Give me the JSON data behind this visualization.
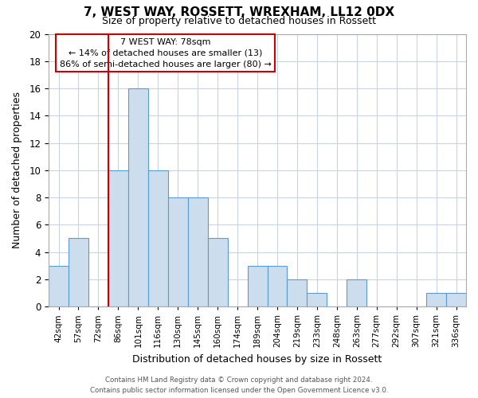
{
  "title": "7, WEST WAY, ROSSETT, WREXHAM, LL12 0DX",
  "subtitle": "Size of property relative to detached houses in Rossett",
  "xlabel": "Distribution of detached houses by size in Rossett",
  "ylabel": "Number of detached properties",
  "bin_labels": [
    "42sqm",
    "57sqm",
    "72sqm",
    "86sqm",
    "101sqm",
    "116sqm",
    "130sqm",
    "145sqm",
    "160sqm",
    "174sqm",
    "189sqm",
    "204sqm",
    "219sqm",
    "233sqm",
    "248sqm",
    "263sqm",
    "277sqm",
    "292sqm",
    "307sqm",
    "321sqm",
    "336sqm"
  ],
  "bar_heights": [
    3,
    5,
    0,
    10,
    16,
    10,
    8,
    8,
    5,
    0,
    3,
    3,
    2,
    1,
    0,
    2,
    0,
    0,
    0,
    1,
    1
  ],
  "bar_color": "#ccdded",
  "bar_edge_color": "#5b9bd5",
  "grid_color": "#c8d4e0",
  "property_line_color": "#cc0000",
  "annotation_text_line1": "7 WEST WAY: 78sqm",
  "annotation_text_line2": "← 14% of detached houses are smaller (13)",
  "annotation_text_line3": "86% of semi-detached houses are larger (80) →",
  "annotation_box_color": "#ffffff",
  "annotation_box_edge": "#cc0000",
  "ylim": [
    0,
    20
  ],
  "yticks": [
    0,
    2,
    4,
    6,
    8,
    10,
    12,
    14,
    16,
    18,
    20
  ],
  "footer_line1": "Contains HM Land Registry data © Crown copyright and database right 2024.",
  "footer_line2": "Contains public sector information licensed under the Open Government Licence v3.0.",
  "background_color": "#ffffff",
  "fig_width": 6.0,
  "fig_height": 5.0
}
